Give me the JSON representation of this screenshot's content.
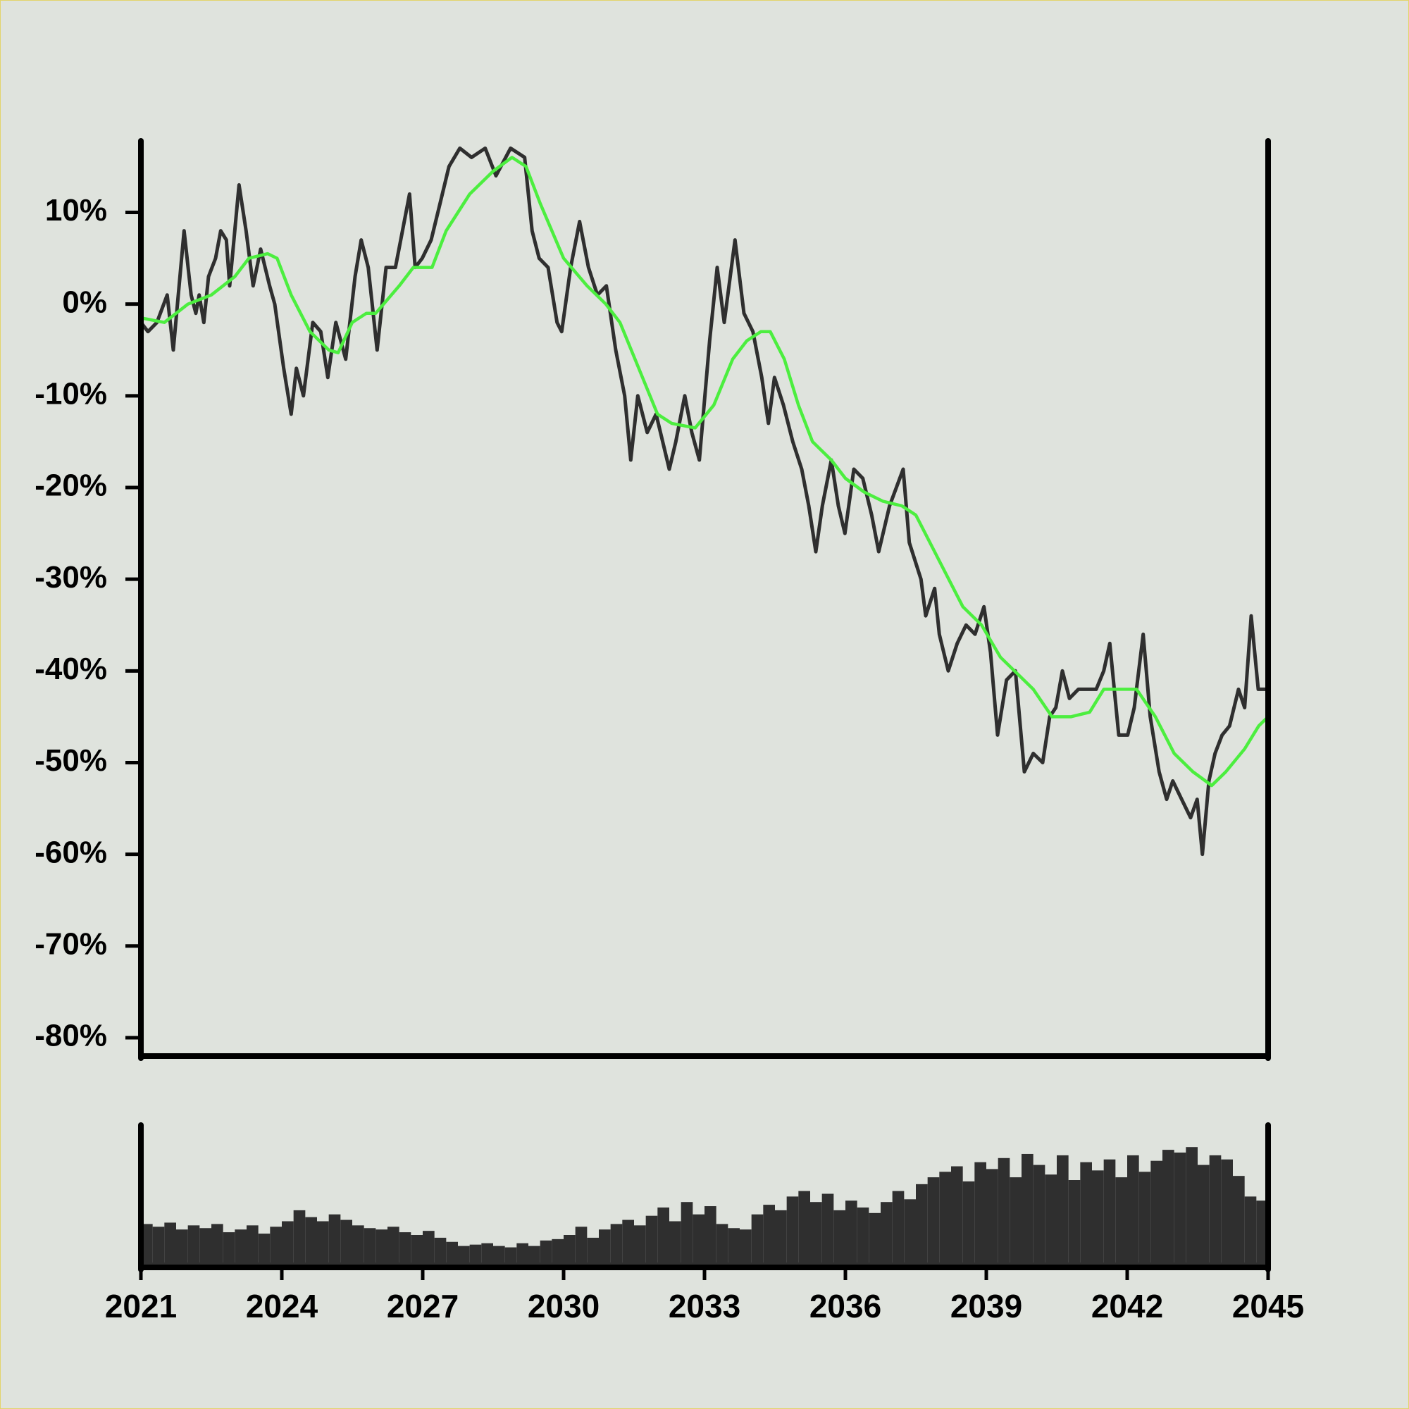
{
  "chart_data": [
    {
      "type": "line",
      "xlim": [
        2021,
        2045
      ],
      "ylim": [
        -82,
        17.8
      ],
      "yticks": [
        {
          "value": -80,
          "label": "-80%"
        },
        {
          "value": -70,
          "label": "-70%"
        },
        {
          "value": -60,
          "label": "-60%"
        },
        {
          "value": -50,
          "label": "-50%"
        },
        {
          "value": -40,
          "label": "-40%"
        },
        {
          "value": -30,
          "label": "-30%"
        },
        {
          "value": -20,
          "label": "-20%"
        },
        {
          "value": -10,
          "label": "-10%"
        },
        {
          "value": 0,
          "label": "0%"
        },
        {
          "value": 10,
          "label": "10%"
        }
      ],
      "series": [
        {
          "color": "#2f2f2f",
          "x": [
            2021.0,
            2021.15,
            2021.34,
            2021.56,
            2021.69,
            2021.92,
            2022.07,
            2022.17,
            2022.24,
            2022.34,
            2022.44,
            2022.59,
            2022.7,
            2022.82,
            2022.89,
            2023.09,
            2023.24,
            2023.39,
            2023.55,
            2023.74,
            2023.85,
            2024.04,
            2024.2,
            2024.31,
            2024.46,
            2024.66,
            2024.83,
            2024.98,
            2025.15,
            2025.36,
            2025.56,
            2025.69,
            2025.84,
            2026.03,
            2026.22,
            2026.42,
            2026.57,
            2026.72,
            2026.84,
            2026.99,
            2027.18,
            2027.37,
            2027.56,
            2027.79,
            2028.04,
            2028.33,
            2028.56,
            2028.87,
            2029.17,
            2029.33,
            2029.48,
            2029.67,
            2029.86,
            2029.96,
            2030.15,
            2030.34,
            2030.53,
            2030.72,
            2030.91,
            2031.11,
            2031.3,
            2031.43,
            2031.58,
            2031.78,
            2031.97,
            2032.25,
            2032.39,
            2032.58,
            2032.73,
            2032.89,
            2033.11,
            2033.27,
            2033.42,
            2033.65,
            2033.84,
            2034.03,
            2034.22,
            2034.36,
            2034.49,
            2034.68,
            2034.88,
            2035.07,
            2035.22,
            2035.37,
            2035.51,
            2035.7,
            2035.85,
            2035.99,
            2036.18,
            2036.37,
            2036.56,
            2036.71,
            2036.94,
            2037.23,
            2037.36,
            2037.61,
            2037.71,
            2037.9,
            2038.0,
            2038.19,
            2038.38,
            2038.57,
            2038.76,
            2038.95,
            2039.09,
            2039.24,
            2039.43,
            2039.62,
            2039.81,
            2040.0,
            2040.2,
            2040.35,
            2040.48,
            2040.62,
            2040.77,
            2040.96,
            2041.15,
            2041.34,
            2041.5,
            2041.63,
            2041.82,
            2042.01,
            2042.15,
            2042.34,
            2042.49,
            2042.68,
            2042.84,
            2042.97,
            2043.16,
            2043.35,
            2043.49,
            2043.6,
            2043.74,
            2043.87,
            2044.02,
            2044.18,
            2044.37,
            2044.5,
            2044.64,
            2044.79,
            2045.0
          ],
          "values": [
            -2,
            -3,
            -2,
            1,
            -5,
            8,
            1,
            -1,
            1,
            -2,
            3,
            5,
            8,
            7,
            2,
            13,
            8,
            2,
            6,
            2,
            0,
            -7,
            -12,
            -7,
            -10,
            -2,
            -3,
            -8,
            -2,
            -6,
            3,
            7,
            4,
            -5,
            4,
            4,
            8,
            12,
            4,
            5,
            7,
            11,
            15,
            17,
            16,
            17,
            14,
            17,
            16,
            8,
            5,
            4,
            -2,
            -3,
            4,
            9,
            4,
            1,
            2,
            -5,
            -10,
            -17,
            -10,
            -14,
            -12,
            -18,
            -15,
            -10,
            -14,
            -17,
            -4,
            4,
            -2,
            7,
            -1,
            -3,
            -8,
            -13,
            -8,
            -11,
            -15,
            -18,
            -22,
            -27,
            -22,
            -17,
            -22,
            -25,
            -18,
            -19,
            -23,
            -27,
            -22,
            -18,
            -26,
            -30,
            -34,
            -31,
            -36,
            -40,
            -37,
            -35,
            -36,
            -33,
            -38,
            -47,
            -41,
            -40,
            -51,
            -49,
            -50,
            -45,
            -44,
            -40,
            -43,
            -42,
            -42,
            -42,
            -40,
            -37,
            -47,
            -47,
            -44,
            -36,
            -45,
            -51,
            -54,
            -52,
            -54,
            -56,
            -54,
            -60,
            -52,
            -49,
            -47,
            -46,
            -42,
            -44,
            -34,
            -42,
            -42
          ]
        },
        {
          "color": "#4cee3f",
          "x": [
            2021.0,
            2021.5,
            2022.0,
            2022.5,
            2023.0,
            2023.3,
            2023.7,
            2023.9,
            2024.2,
            2024.6,
            2025.0,
            2025.2,
            2025.5,
            2025.8,
            2026.0,
            2026.5,
            2026.8,
            2027.2,
            2027.5,
            2028.0,
            2028.5,
            2028.9,
            2029.2,
            2029.5,
            2030.0,
            2030.5,
            2030.9,
            2031.2,
            2031.6,
            2032.0,
            2032.3,
            2032.8,
            2033.2,
            2033.6,
            2033.9,
            2034.2,
            2034.4,
            2034.7,
            2035.0,
            2035.3,
            2035.7,
            2036.0,
            2036.4,
            2036.8,
            2037.2,
            2037.5,
            2038.0,
            2038.5,
            2038.9,
            2039.3,
            2039.6,
            2040.0,
            2040.4,
            2040.8,
            2041.2,
            2041.5,
            2041.8,
            2042.0,
            2042.2,
            2042.6,
            2043.0,
            2043.4,
            2043.8,
            2044.1,
            2044.5,
            2044.8,
            2045.0
          ],
          "values": [
            -1.5,
            -2,
            0,
            1,
            3,
            5,
            5.5,
            5,
            1,
            -3,
            -5,
            -5.3,
            -2,
            -1,
            -1,
            2,
            4,
            4,
            8,
            12,
            14.5,
            16,
            15,
            11,
            5,
            2,
            0,
            -2,
            -7,
            -12,
            -13,
            -13.5,
            -11,
            -6,
            -4,
            -3,
            -3,
            -6,
            -11,
            -15,
            -17,
            -19,
            -20.5,
            -21.5,
            -22,
            -23,
            -28,
            -33,
            -35,
            -38.5,
            -40,
            -42,
            -45,
            -45,
            -44.5,
            -42,
            -42,
            -42,
            -42,
            -45,
            -49,
            -51,
            -52.5,
            -51,
            -48.5,
            -46,
            -45
          ]
        }
      ]
    },
    {
      "type": "bar",
      "color": "#2f2f2f",
      "xlim": [
        2021,
        2045
      ],
      "ylim": [
        0,
        100
      ],
      "xticks": [
        2021,
        2024,
        2027,
        2030,
        2033,
        2036,
        2039,
        2042,
        2045
      ],
      "x": [
        2021.125,
        2021.375,
        2021.625,
        2021.875,
        2022.125,
        2022.375,
        2022.625,
        2022.875,
        2023.125,
        2023.375,
        2023.625,
        2023.875,
        2024.125,
        2024.375,
        2024.625,
        2024.875,
        2025.125,
        2025.375,
        2025.625,
        2025.875,
        2026.125,
        2026.375,
        2026.625,
        2026.875,
        2027.125,
        2027.375,
        2027.625,
        2027.875,
        2028.125,
        2028.375,
        2028.625,
        2028.875,
        2029.125,
        2029.375,
        2029.625,
        2029.875,
        2030.125,
        2030.375,
        2030.625,
        2030.875,
        2031.125,
        2031.375,
        2031.625,
        2031.875,
        2032.125,
        2032.375,
        2032.625,
        2032.875,
        2033.125,
        2033.375,
        2033.625,
        2033.875,
        2034.125,
        2034.375,
        2034.625,
        2034.875,
        2035.125,
        2035.375,
        2035.625,
        2035.875,
        2036.125,
        2036.375,
        2036.625,
        2036.875,
        2037.125,
        2037.375,
        2037.625,
        2037.875,
        2038.125,
        2038.375,
        2038.625,
        2038.875,
        2039.125,
        2039.375,
        2039.625,
        2039.875,
        2040.125,
        2040.375,
        2040.625,
        2040.875,
        2041.125,
        2041.375,
        2041.625,
        2041.875,
        2042.125,
        2042.375,
        2042.625,
        2042.875,
        2043.125,
        2043.375,
        2043.625,
        2043.875,
        2044.125,
        2044.375,
        2044.625,
        2044.875
      ],
      "values": [
        28,
        26,
        29,
        24,
        27,
        25,
        28,
        22,
        24,
        27,
        21,
        26,
        30,
        38,
        33,
        30,
        35,
        31,
        27,
        25,
        24,
        26,
        22,
        20,
        23,
        18,
        15,
        12,
        13,
        14,
        12,
        11,
        14,
        12,
        16,
        17,
        20,
        26,
        18,
        24,
        28,
        31,
        27,
        34,
        40,
        30,
        44,
        35,
        41,
        28,
        25,
        24,
        35,
        42,
        38,
        48,
        52,
        44,
        50,
        38,
        45,
        40,
        36,
        44,
        52,
        46,
        57,
        62,
        66,
        70,
        59,
        73,
        68,
        76,
        62,
        79,
        71,
        64,
        78,
        60,
        73,
        67,
        75,
        62,
        78,
        66,
        74,
        82,
        80,
        84,
        71,
        78,
        75,
        63,
        48,
        45
      ]
    }
  ]
}
